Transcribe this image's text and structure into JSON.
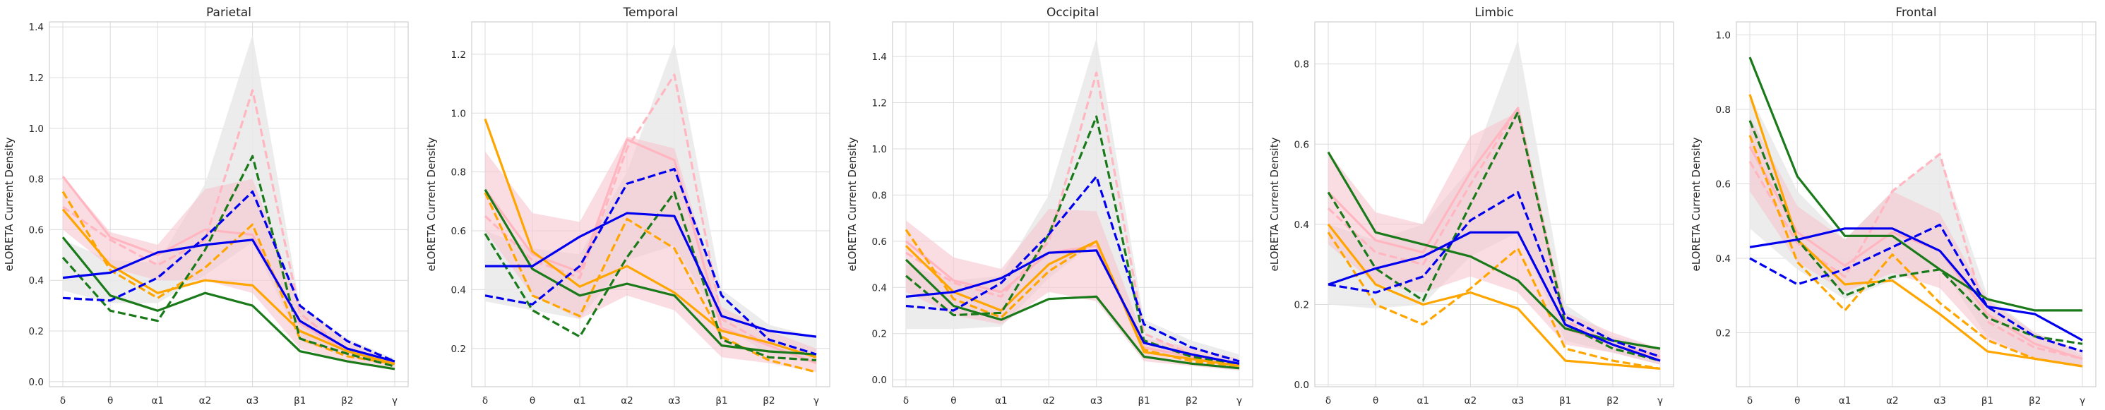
{
  "chart_data": [
    {
      "type": "line",
      "title": "Parietal",
      "ylabel": "eLORETA Current Density",
      "categories": [
        "δ",
        "θ",
        "α1",
        "α2",
        "α3",
        "β1",
        "β2",
        "γ"
      ],
      "ylim": [
        -0.02,
        1.42
      ],
      "yticks": [
        "0.0",
        "0.2",
        "0.4",
        "0.6",
        "0.8",
        "1.0",
        "1.2",
        "1.4"
      ],
      "ytick_values": [
        0,
        0.2,
        0.4,
        0.6,
        0.8,
        1.0,
        1.2,
        1.4
      ],
      "grid": true,
      "bands": [
        {
          "color": "#e9e9e9",
          "lower": [
            0.36,
            0.31,
            0.31,
            0.42,
            0.55,
            0.16,
            0.1,
            0.06
          ],
          "upper": [
            0.56,
            0.48,
            0.47,
            0.78,
            1.37,
            0.3,
            0.17,
            0.09
          ]
        },
        {
          "color": "#f7c6cf",
          "lower": [
            0.6,
            0.45,
            0.4,
            0.4,
            0.35,
            0.13,
            0.08,
            0.05
          ],
          "upper": [
            0.81,
            0.59,
            0.54,
            0.76,
            0.8,
            0.3,
            0.16,
            0.08
          ]
        }
      ],
      "series": [
        {
          "color": "#ffb6c1",
          "dash": false,
          "values": [
            0.81,
            0.57,
            0.5,
            0.6,
            0.58,
            0.23,
            0.12,
            0.07
          ]
        },
        {
          "color": "#ffb6c1",
          "dash": true,
          "values": [
            0.69,
            0.56,
            0.46,
            0.56,
            1.15,
            0.27,
            0.12,
            0.07
          ]
        },
        {
          "color": "#ffa500",
          "dash": false,
          "values": [
            0.68,
            0.46,
            0.35,
            0.4,
            0.38,
            0.2,
            0.12,
            0.07
          ]
        },
        {
          "color": "#ffa500",
          "dash": true,
          "values": [
            0.75,
            0.44,
            0.33,
            0.45,
            0.62,
            0.17,
            0.1,
            0.07
          ]
        },
        {
          "color": "#1a7a1a",
          "dash": false,
          "values": [
            0.57,
            0.34,
            0.28,
            0.35,
            0.3,
            0.12,
            0.08,
            0.05
          ]
        },
        {
          "color": "#1a7a1a",
          "dash": true,
          "values": [
            0.49,
            0.28,
            0.24,
            0.52,
            0.89,
            0.17,
            0.11,
            0.06
          ]
        },
        {
          "color": "#0000ee",
          "dash": false,
          "values": [
            0.41,
            0.43,
            0.51,
            0.54,
            0.56,
            0.24,
            0.13,
            0.08
          ]
        },
        {
          "color": "#0000ee",
          "dash": true,
          "values": [
            0.33,
            0.32,
            0.41,
            0.57,
            0.75,
            0.3,
            0.16,
            0.08
          ]
        }
      ]
    },
    {
      "type": "line",
      "title": "Temporal",
      "ylabel": "eLORETA Current Density",
      "categories": [
        "δ",
        "θ",
        "α1",
        "α2",
        "α3",
        "β1",
        "β2",
        "γ"
      ],
      "ylim": [
        0.07,
        1.31
      ],
      "yticks": [
        "0.2",
        "0.4",
        "0.6",
        "0.8",
        "1.0",
        "1.2"
      ],
      "ytick_values": [
        0.2,
        0.4,
        0.6,
        0.8,
        1.0,
        1.2
      ],
      "grid": true,
      "bands": [
        {
          "color": "#e9e9e9",
          "lower": [
            0.36,
            0.33,
            0.3,
            0.5,
            0.55,
            0.28,
            0.18,
            0.15
          ],
          "upper": [
            0.6,
            0.54,
            0.52,
            0.8,
            1.24,
            0.4,
            0.28,
            0.24
          ]
        },
        {
          "color": "#f7c6cf",
          "lower": [
            0.6,
            0.38,
            0.3,
            0.38,
            0.33,
            0.17,
            0.15,
            0.12
          ],
          "upper": [
            0.87,
            0.66,
            0.63,
            0.92,
            0.88,
            0.34,
            0.26,
            0.2
          ]
        }
      ],
      "series": [
        {
          "color": "#ffb6c1",
          "dash": false,
          "values": [
            0.74,
            0.52,
            0.46,
            0.91,
            0.84,
            0.27,
            0.21,
            0.15
          ]
        },
        {
          "color": "#ffb6c1",
          "dash": true,
          "values": [
            0.65,
            0.5,
            0.44,
            0.88,
            1.13,
            0.3,
            0.21,
            0.15
          ]
        },
        {
          "color": "#ffa500",
          "dash": false,
          "values": [
            0.98,
            0.53,
            0.41,
            0.48,
            0.39,
            0.26,
            0.22,
            0.17
          ]
        },
        {
          "color": "#ffa500",
          "dash": true,
          "values": [
            0.73,
            0.38,
            0.31,
            0.64,
            0.54,
            0.24,
            0.16,
            0.12
          ]
        },
        {
          "color": "#1a7a1a",
          "dash": false,
          "values": [
            0.74,
            0.47,
            0.38,
            0.42,
            0.38,
            0.21,
            0.19,
            0.18
          ]
        },
        {
          "color": "#1a7a1a",
          "dash": true,
          "values": [
            0.59,
            0.33,
            0.24,
            0.51,
            0.73,
            0.23,
            0.17,
            0.16
          ]
        },
        {
          "color": "#0000ee",
          "dash": false,
          "values": [
            0.48,
            0.48,
            0.58,
            0.66,
            0.65,
            0.31,
            0.26,
            0.24
          ]
        },
        {
          "color": "#0000ee",
          "dash": true,
          "values": [
            0.38,
            0.35,
            0.48,
            0.76,
            0.81,
            0.38,
            0.23,
            0.18
          ]
        }
      ]
    },
    {
      "type": "line",
      "title": "Occipital",
      "ylabel": "eLORETA Current Density",
      "categories": [
        "δ",
        "θ",
        "α1",
        "α2",
        "α3",
        "β1",
        "β2",
        "γ"
      ],
      "ylim": [
        -0.03,
        1.55
      ],
      "yticks": [
        "0.0",
        "0.2",
        "0.4",
        "0.6",
        "0.8",
        "1.0",
        "1.2",
        "1.4"
      ],
      "ytick_values": [
        0,
        0.2,
        0.4,
        0.6,
        0.8,
        1.0,
        1.2,
        1.4
      ],
      "grid": true,
      "bands": [
        {
          "color": "#e9e9e9",
          "lower": [
            0.22,
            0.22,
            0.23,
            0.44,
            0.6,
            0.12,
            0.09,
            0.06
          ],
          "upper": [
            0.5,
            0.43,
            0.45,
            0.8,
            1.48,
            0.26,
            0.17,
            0.11
          ]
        },
        {
          "color": "#f7c6cf",
          "lower": [
            0.38,
            0.28,
            0.24,
            0.38,
            0.34,
            0.08,
            0.06,
            0.04
          ],
          "upper": [
            0.69,
            0.53,
            0.48,
            0.74,
            0.73,
            0.18,
            0.14,
            0.09
          ]
        }
      ],
      "series": [
        {
          "color": "#ffb6c1",
          "dash": false,
          "values": [
            0.6,
            0.43,
            0.38,
            0.55,
            0.58,
            0.14,
            0.1,
            0.06
          ]
        },
        {
          "color": "#ffb6c1",
          "dash": true,
          "values": [
            0.55,
            0.42,
            0.36,
            0.6,
            1.33,
            0.2,
            0.11,
            0.07
          ]
        },
        {
          "color": "#ffa500",
          "dash": false,
          "values": [
            0.58,
            0.38,
            0.3,
            0.5,
            0.6,
            0.12,
            0.09,
            0.06
          ]
        },
        {
          "color": "#ffa500",
          "dash": true,
          "values": [
            0.65,
            0.35,
            0.27,
            0.47,
            0.6,
            0.13,
            0.08,
            0.06
          ]
        },
        {
          "color": "#1a7a1a",
          "dash": false,
          "values": [
            0.52,
            0.32,
            0.26,
            0.35,
            0.36,
            0.1,
            0.07,
            0.05
          ]
        },
        {
          "color": "#1a7a1a",
          "dash": true,
          "values": [
            0.45,
            0.28,
            0.29,
            0.63,
            1.14,
            0.17,
            0.1,
            0.07
          ]
        },
        {
          "color": "#0000ee",
          "dash": false,
          "values": [
            0.36,
            0.38,
            0.44,
            0.55,
            0.56,
            0.16,
            0.11,
            0.07
          ]
        },
        {
          "color": "#0000ee",
          "dash": true,
          "values": [
            0.32,
            0.3,
            0.42,
            0.63,
            0.88,
            0.24,
            0.14,
            0.08
          ]
        }
      ]
    },
    {
      "type": "line",
      "title": "Limbic",
      "ylabel": "eLORETA Current Density",
      "categories": [
        "δ",
        "θ",
        "α1",
        "α2",
        "α3",
        "β1",
        "β2",
        "γ"
      ],
      "ylim": [
        -0.005,
        0.905
      ],
      "yticks": [
        "0.0",
        "0.2",
        "0.4",
        "0.6",
        "0.8"
      ],
      "ytick_values": [
        0,
        0.2,
        0.4,
        0.6,
        0.8
      ],
      "grid": true,
      "bands": [
        {
          "color": "#e9e9e9",
          "lower": [
            0.2,
            0.19,
            0.2,
            0.32,
            0.38,
            0.11,
            0.08,
            0.05
          ],
          "upper": [
            0.4,
            0.36,
            0.4,
            0.54,
            0.86,
            0.2,
            0.12,
            0.09
          ]
        },
        {
          "color": "#f7c6cf",
          "lower": [
            0.35,
            0.25,
            0.23,
            0.27,
            0.23,
            0.1,
            0.08,
            0.05
          ],
          "upper": [
            0.58,
            0.43,
            0.4,
            0.62,
            0.68,
            0.18,
            0.13,
            0.09
          ]
        }
      ],
      "series": [
        {
          "color": "#ffb6c1",
          "dash": false,
          "values": [
            0.48,
            0.36,
            0.33,
            0.53,
            0.69,
            0.14,
            0.1,
            0.07
          ]
        },
        {
          "color": "#ffb6c1",
          "dash": true,
          "values": [
            0.44,
            0.33,
            0.3,
            0.5,
            0.69,
            0.16,
            0.1,
            0.06
          ]
        },
        {
          "color": "#ffa500",
          "dash": false,
          "values": [
            0.4,
            0.25,
            0.2,
            0.23,
            0.19,
            0.06,
            0.05,
            0.04
          ]
        },
        {
          "color": "#ffa500",
          "dash": true,
          "values": [
            0.38,
            0.2,
            0.15,
            0.24,
            0.34,
            0.09,
            0.06,
            0.04
          ]
        },
        {
          "color": "#1a7a1a",
          "dash": false,
          "values": [
            0.58,
            0.38,
            0.35,
            0.32,
            0.26,
            0.14,
            0.11,
            0.09
          ]
        },
        {
          "color": "#1a7a1a",
          "dash": true,
          "values": [
            0.48,
            0.29,
            0.21,
            0.45,
            0.68,
            0.15,
            0.09,
            0.06
          ]
        },
        {
          "color": "#0000ee",
          "dash": false,
          "values": [
            0.25,
            0.29,
            0.32,
            0.38,
            0.38,
            0.15,
            0.1,
            0.06
          ]
        },
        {
          "color": "#0000ee",
          "dash": true,
          "values": [
            0.25,
            0.23,
            0.27,
            0.41,
            0.48,
            0.17,
            0.11,
            0.07
          ]
        }
      ]
    },
    {
      "type": "line",
      "title": "Frontal",
      "ylabel": "eLORETA Current Density",
      "categories": [
        "δ",
        "θ",
        "α1",
        "α2",
        "α3",
        "β1",
        "β2",
        "γ"
      ],
      "ylim": [
        0.055,
        1.035
      ],
      "yticks": [
        "0.2",
        "0.4",
        "0.6",
        "0.8",
        "1.0"
      ],
      "ytick_values": [
        0.2,
        0.4,
        0.6,
        0.8,
        1.0
      ],
      "grid": true,
      "bands": [
        {
          "color": "#e9e9e9",
          "lower": [
            0.48,
            0.37,
            0.29,
            0.34,
            0.38,
            0.19,
            0.13,
            0.11
          ],
          "upper": [
            0.84,
            0.58,
            0.45,
            0.58,
            0.68,
            0.3,
            0.2,
            0.14
          ]
        },
        {
          "color": "#f7c6cf",
          "lower": [
            0.58,
            0.39,
            0.31,
            0.36,
            0.32,
            0.18,
            0.13,
            0.11
          ],
          "upper": [
            0.78,
            0.54,
            0.45,
            0.58,
            0.52,
            0.29,
            0.2,
            0.15
          ]
        }
      ],
      "series": [
        {
          "color": "#ffb6c1",
          "dash": false,
          "values": [
            0.7,
            0.47,
            0.38,
            0.47,
            0.42,
            0.25,
            0.17,
            0.13
          ]
        },
        {
          "color": "#ffb6c1",
          "dash": true,
          "values": [
            0.66,
            0.44,
            0.35,
            0.58,
            0.68,
            0.23,
            0.16,
            0.13
          ]
        },
        {
          "color": "#ffa500",
          "dash": false,
          "values": [
            0.84,
            0.45,
            0.33,
            0.34,
            0.25,
            0.15,
            0.13,
            0.11
          ]
        },
        {
          "color": "#ffa500",
          "dash": true,
          "values": [
            0.73,
            0.39,
            0.26,
            0.41,
            0.28,
            0.18,
            0.13,
            0.11
          ]
        },
        {
          "color": "#1a7a1a",
          "dash": false,
          "values": [
            0.94,
            0.62,
            0.46,
            0.46,
            0.37,
            0.29,
            0.26,
            0.26
          ]
        },
        {
          "color": "#1a7a1a",
          "dash": true,
          "values": [
            0.77,
            0.45,
            0.3,
            0.35,
            0.37,
            0.24,
            0.19,
            0.17
          ]
        },
        {
          "color": "#0000ee",
          "dash": false,
          "values": [
            0.43,
            0.45,
            0.48,
            0.48,
            0.42,
            0.27,
            0.25,
            0.18
          ]
        },
        {
          "color": "#0000ee",
          "dash": true,
          "values": [
            0.4,
            0.33,
            0.37,
            0.43,
            0.49,
            0.27,
            0.19,
            0.15
          ]
        }
      ]
    }
  ]
}
